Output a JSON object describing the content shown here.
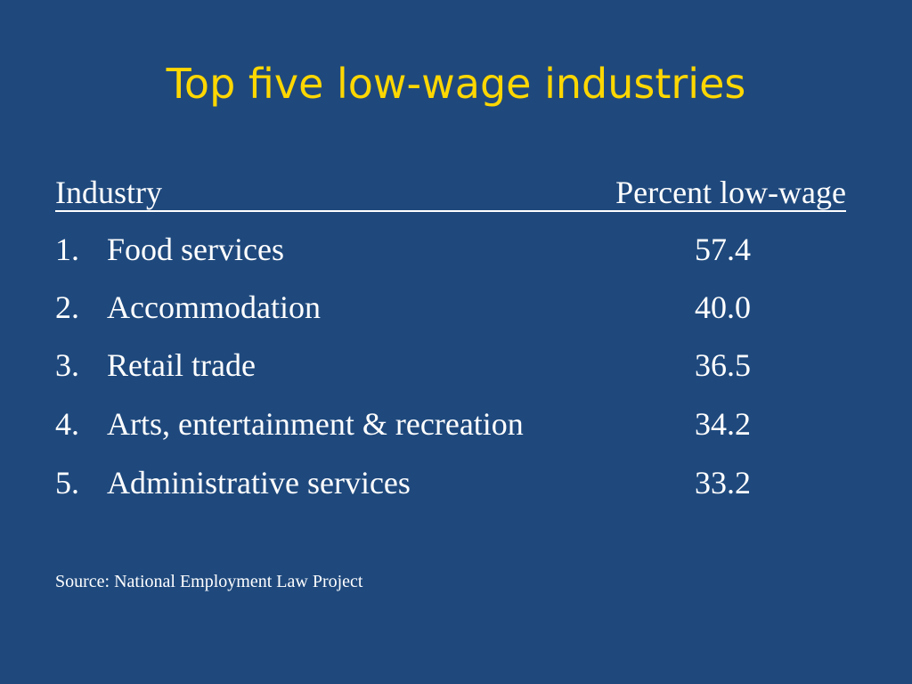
{
  "slide": {
    "title": "Top five low-wage industries",
    "background_color": "#1f497d",
    "title_color": "#ffd700",
    "text_color": "#ffffff"
  },
  "table": {
    "headers": {
      "industry": "Industry",
      "percent": "Percent low-wage"
    },
    "rows": [
      {
        "number": "1.",
        "industry": "Food services",
        "percent": "57.4"
      },
      {
        "number": "2.",
        "industry": "Accommodation",
        "percent": "40.0"
      },
      {
        "number": "3.",
        "industry": "Retail trade",
        "percent": "36.5"
      },
      {
        "number": "4.",
        "industry": "Arts, entertainment & recreation",
        "percent": "34.2"
      },
      {
        "number": "5.",
        "industry": "Administrative services",
        "percent": "33.2"
      }
    ]
  },
  "source": "Source: National Employment Law Project"
}
